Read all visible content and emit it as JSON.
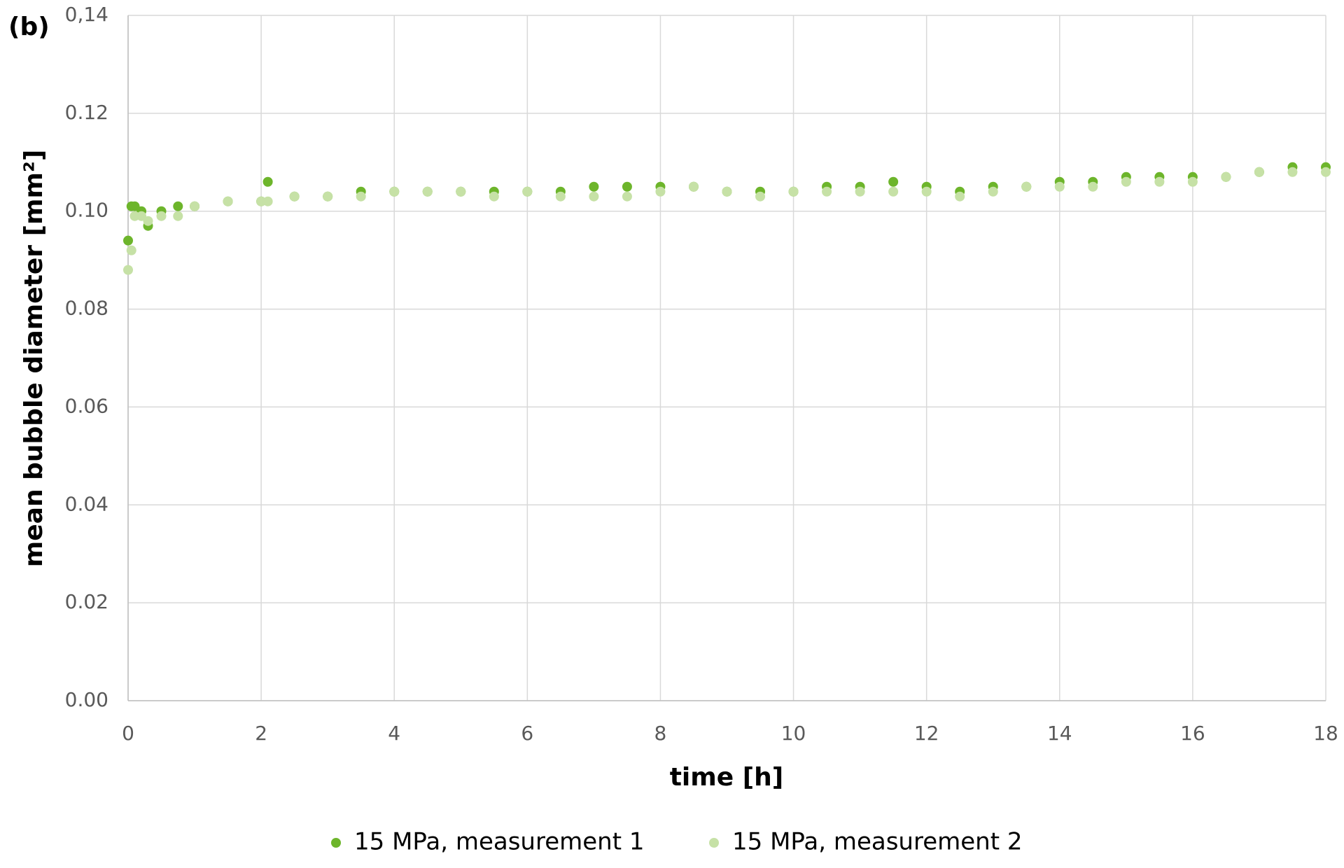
{
  "chart_data": {
    "type": "scatter",
    "annotation": "(b)",
    "x_label": "time [h]",
    "y_label": "mean bubble diameter [mm²]",
    "x": [
      0,
      0.05,
      0.1,
      0.2,
      0.3,
      0.5,
      0.75,
      1,
      1.5,
      2,
      2.1,
      2.5,
      3,
      3.5,
      4,
      4.5,
      5,
      5.5,
      6,
      6.5,
      7,
      7.5,
      8,
      8.5,
      9,
      9.5,
      10,
      10.5,
      11,
      11.5,
      12,
      12.5,
      13,
      13.5,
      14,
      14.5,
      15,
      15.5,
      16,
      16.5,
      17,
      17.5,
      18
    ],
    "series": [
      {
        "name": "15 MPa, measurement 1",
        "color": "#6db52b",
        "values": [
          0.094,
          0.101,
          0.101,
          0.1,
          0.097,
          0.1,
          0.101,
          0.101,
          0.102,
          0.102,
          0.106,
          0.103,
          0.103,
          0.104,
          0.104,
          0.104,
          0.104,
          0.104,
          0.104,
          0.104,
          0.105,
          0.105,
          0.105,
          0.105,
          0.104,
          0.104,
          0.104,
          0.105,
          0.105,
          0.106,
          0.105,
          0.104,
          0.105,
          0.105,
          0.106,
          0.106,
          0.107,
          0.107,
          0.107,
          0.107,
          0.108,
          0.109,
          0.109
        ]
      },
      {
        "name": "15 MPa, measurement 2",
        "color": "#c6e1a6",
        "values": [
          0.088,
          0.092,
          0.099,
          0.099,
          0.098,
          0.099,
          0.099,
          0.101,
          0.102,
          0.102,
          0.102,
          0.103,
          0.103,
          0.103,
          0.104,
          0.104,
          0.104,
          0.103,
          0.104,
          0.103,
          0.103,
          0.103,
          0.104,
          0.105,
          0.104,
          0.103,
          0.104,
          0.104,
          0.104,
          0.104,
          0.104,
          0.103,
          0.104,
          0.105,
          0.105,
          0.105,
          0.106,
          0.106,
          0.106,
          0.107,
          0.108,
          0.108,
          0.108
        ]
      }
    ],
    "xlim": [
      0,
      18
    ],
    "xticks": [
      0,
      2,
      4,
      6,
      8,
      10,
      12,
      14,
      16,
      18
    ],
    "ylim": [
      0,
      0.14
    ],
    "yticks": [
      {
        "value": 0,
        "label": "0.00"
      },
      {
        "value": 0.02,
        "label": "0.02"
      },
      {
        "value": 0.04,
        "label": "0.04"
      },
      {
        "value": 0.06,
        "label": "0.06"
      },
      {
        "value": 0.08,
        "label": "0.08"
      },
      {
        "value": 0.1,
        "label": "0.10"
      },
      {
        "value": 0.12,
        "label": "0.12"
      },
      {
        "value": 0.14,
        "label": "0,14"
      }
    ],
    "grid": true,
    "legend": "bottom"
  }
}
